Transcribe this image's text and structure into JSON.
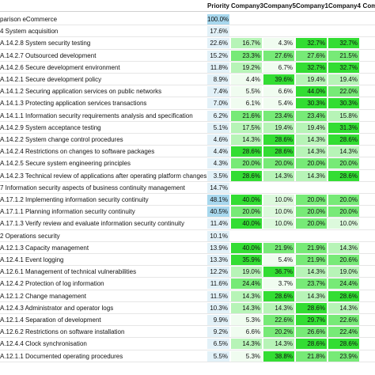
{
  "header": {
    "priority": "Priority",
    "companies": [
      "Company3",
      "Company5",
      "Company1",
      "Company4",
      "Company"
    ]
  },
  "colors": {
    "strong_green": "#33dd33",
    "mid_green": "#77ea77",
    "light_green": "#b7f4b7",
    "pale_green": "#dcf9dc",
    "faint_green": "#f0fcf0",
    "priority_blue_strong": "#a8d8ee",
    "priority_blue_light": "#e2f1f8"
  },
  "rows": [
    {
      "label": "parison eCommerce",
      "priority": "100.0%",
      "pri_level": 1.0,
      "values": []
    },
    {
      "label": "4 System acquisition",
      "priority": "17.6%",
      "pri_level": 0.18,
      "values": []
    },
    {
      "label": "A.14.2.8 System security testing",
      "priority": "22.6%",
      "pri_level": 0.23,
      "values": [
        "16.7%",
        "4.3%",
        "32.7%",
        "32.7%",
        ""
      ]
    },
    {
      "label": "A.14.2.7 Outsourced development",
      "priority": "15.2%",
      "pri_level": 0.15,
      "values": [
        "23.3%",
        "27.6%",
        "27.6%",
        "21.5%",
        ""
      ]
    },
    {
      "label": "A.14.2.6 Secure development environment",
      "priority": "11.8%",
      "pri_level": 0.12,
      "values": [
        "19.2%",
        "6.7%",
        "32.7%",
        "32.7%",
        ""
      ]
    },
    {
      "label": "A.14.2.1 Secure development policy",
      "priority": "8.9%",
      "pri_level": 0.09,
      "values": [
        "4.4%",
        "39.6%",
        "19.4%",
        "19.4%",
        ""
      ]
    },
    {
      "label": "A.14.1.2 Securing application services on public networks",
      "priority": "7.4%",
      "pri_level": 0.07,
      "values": [
        "5.5%",
        "6.6%",
        "44.0%",
        "22.0%",
        ""
      ]
    },
    {
      "label": "A.14.1.3 Protecting application services transactions",
      "priority": "7.0%",
      "pri_level": 0.07,
      "values": [
        "6.1%",
        "5.4%",
        "30.3%",
        "30.3%",
        ""
      ]
    },
    {
      "label": "A.14.1.1 Information security requirements analysis and specification",
      "priority": "6.2%",
      "pri_level": 0.06,
      "values": [
        "21.6%",
        "23.4%",
        "23.4%",
        "15.8%",
        ""
      ]
    },
    {
      "label": "A.14.2.9 System acceptance testing",
      "priority": "5.1%",
      "pri_level": 0.05,
      "values": [
        "17.5%",
        "19.4%",
        "19.4%",
        "31.3%",
        ""
      ]
    },
    {
      "label": "A.14.2.2 System change control procedures",
      "priority": "4.6%",
      "pri_level": 0.05,
      "values": [
        "14.3%",
        "28.6%",
        "14.3%",
        "28.6%",
        ""
      ]
    },
    {
      "label": "A.14.2.4 Restrictions on changes to software packages",
      "priority": "4.4%",
      "pri_level": 0.04,
      "values": [
        "28.6%",
        "28.6%",
        "14.3%",
        "14.3%",
        ""
      ]
    },
    {
      "label": "A.14.2.5 Secure system engineering principles",
      "priority": "4.3%",
      "pri_level": 0.04,
      "values": [
        "20.0%",
        "20.0%",
        "20.0%",
        "20.0%",
        ""
      ]
    },
    {
      "label": "A.14.2.3 Technical review of applications after operating platform changes",
      "priority": "3.5%",
      "pri_level": 0.04,
      "values": [
        "28.6%",
        "14.3%",
        "14.3%",
        "28.6%",
        ""
      ]
    },
    {
      "label": "7 Information security aspects of business continuity management",
      "priority": "14.7%",
      "pri_level": 0.15,
      "values": []
    },
    {
      "label": "A.17.1.2 Implementing information security continuity",
      "priority": "48.1%",
      "pri_level": 0.48,
      "values": [
        "40.0%",
        "10.0%",
        "20.0%",
        "20.0%",
        ""
      ]
    },
    {
      "label": "A.17.1.1 Planning information security continuity",
      "priority": "40.5%",
      "pri_level": 0.41,
      "values": [
        "20.0%",
        "10.0%",
        "20.0%",
        "20.0%",
        ""
      ]
    },
    {
      "label": "A.17.1.3 Verify review and evaluate information security continuity",
      "priority": "11.4%",
      "pri_level": 0.11,
      "values": [
        "40.0%",
        "10.0%",
        "20.0%",
        "10.0%",
        ""
      ]
    },
    {
      "label": "2 Operations security",
      "priority": "10.1%",
      "pri_level": 0.1,
      "values": []
    },
    {
      "label": "A.12.1.3 Capacity management",
      "priority": "13.9%",
      "pri_level": 0.14,
      "values": [
        "40.0%",
        "21.9%",
        "21.9%",
        "14.3%",
        ""
      ]
    },
    {
      "label": "A.12.4.1 Event logging",
      "priority": "13.3%",
      "pri_level": 0.13,
      "values": [
        "35.9%",
        "5.4%",
        "21.9%",
        "20.6%",
        ""
      ]
    },
    {
      "label": "A.12.6.1 Management of technical vulnerabilities",
      "priority": "12.2%",
      "pri_level": 0.12,
      "values": [
        "19.0%",
        "36.7%",
        "14.3%",
        "19.0%",
        ""
      ]
    },
    {
      "label": "A.12.4.2 Protection of log information",
      "priority": "11.6%",
      "pri_level": 0.12,
      "values": [
        "24.4%",
        "3.7%",
        "23.7%",
        "24.4%",
        ""
      ]
    },
    {
      "label": "A.12.1.2 Change management",
      "priority": "11.5%",
      "pri_level": 0.12,
      "values": [
        "14.3%",
        "28.6%",
        "14.3%",
        "28.6%",
        ""
      ]
    },
    {
      "label": "A.12.4.3 Administrator and operator logs",
      "priority": "10.3%",
      "pri_level": 0.1,
      "values": [
        "14.3%",
        "14.3%",
        "28.6%",
        "14.3%",
        ""
      ]
    },
    {
      "label": "A.12.1.4 Separation of development",
      "priority": "9.9%",
      "pri_level": 0.1,
      "values": [
        "5.3%",
        "22.6%",
        "29.7%",
        "22.6%",
        ""
      ]
    },
    {
      "label": "A.12.6.2 Restrictions on software installation",
      "priority": "9.2%",
      "pri_level": 0.09,
      "values": [
        "6.6%",
        "20.2%",
        "26.6%",
        "22.4%",
        ""
      ]
    },
    {
      "label": "A.12.4.4 Clock synchronisation",
      "priority": "6.5%",
      "pri_level": 0.07,
      "values": [
        "14.3%",
        "14.3%",
        "28.6%",
        "28.6%",
        ""
      ]
    },
    {
      "label": "A.12.1.1 Documented operating procedures",
      "priority": "5.5%",
      "pri_level": 0.06,
      "values": [
        "5.3%",
        "38.8%",
        "21.8%",
        "23.9%",
        ""
      ]
    }
  ]
}
